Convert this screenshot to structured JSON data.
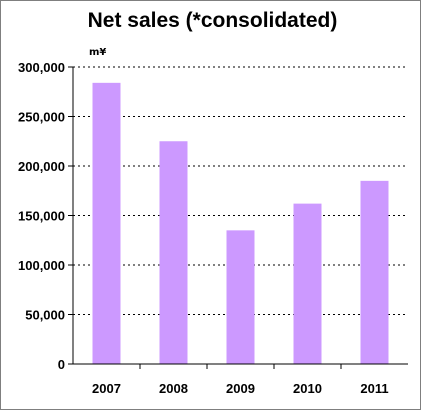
{
  "chart_data": {
    "type": "bar",
    "title": "Net sales (*consolidated)",
    "unit_label": "m¥",
    "categories": [
      "2007",
      "2008",
      "2009",
      "2010",
      "2011"
    ],
    "values": [
      284000,
      225000,
      135000,
      162000,
      185000
    ],
    "y_ticks": [
      "0",
      "50,000",
      "100,000",
      "150,000",
      "200,000",
      "250,000",
      "300,000"
    ],
    "ylim": [
      0,
      300000
    ],
    "y_step": 50000,
    "grid": "horizontal dotted",
    "legend": "none",
    "bar_color": "#cc99ff"
  }
}
